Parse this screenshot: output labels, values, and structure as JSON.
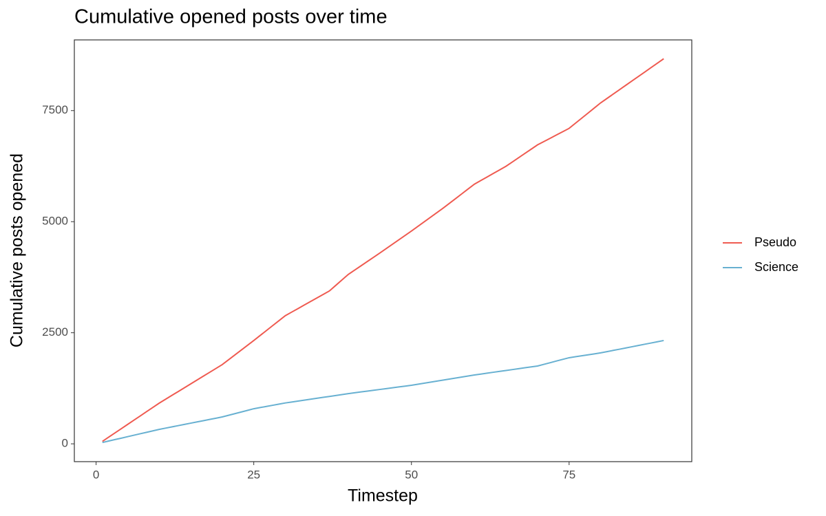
{
  "chart_data": {
    "type": "line",
    "title": "Cumulative opened posts over time",
    "x_label": "Timestep",
    "y_label": "Cumulative posts opened",
    "x": [
      1,
      2,
      3,
      4,
      5,
      6,
      7,
      8,
      9,
      10,
      11,
      12,
      13,
      14,
      15,
      16,
      17,
      18,
      19,
      20,
      21,
      22,
      23,
      24,
      25,
      26,
      27,
      28,
      29,
      30,
      31,
      32,
      33,
      34,
      35,
      36,
      37,
      38,
      39,
      40,
      41,
      42,
      43,
      44,
      45,
      46,
      47,
      48,
      49,
      50,
      51,
      52,
      53,
      54,
      55,
      56,
      57,
      58,
      59,
      60,
      61,
      62,
      63,
      64,
      65,
      66,
      67,
      68,
      69,
      70,
      71,
      72,
      73,
      74,
      75,
      76,
      77,
      78,
      79,
      80,
      81,
      82,
      83,
      84,
      85,
      86,
      87,
      88,
      89,
      90
    ],
    "series": [
      {
        "name": "Pseudo",
        "color": "#ef5a50",
        "values": [
          55,
          151,
          246,
          342,
          437,
          533,
          628,
          724,
          819,
          915,
          1002,
          1089,
          1175,
          1262,
          1349,
          1436,
          1523,
          1609,
          1696,
          1783,
          1891,
          2000,
          2108,
          2217,
          2325,
          2437,
          2549,
          2661,
          2772,
          2884,
          2964,
          3043,
          3123,
          3203,
          3283,
          3362,
          3442,
          3566,
          3690,
          3814,
          3910,
          4006,
          4103,
          4199,
          4295,
          4394,
          4493,
          4592,
          4691,
          4790,
          4892,
          4995,
          5097,
          5200,
          5302,
          5411,
          5519,
          5628,
          5737,
          5845,
          5926,
          6006,
          6087,
          6167,
          6248,
          6344,
          6440,
          6537,
          6633,
          6729,
          6803,
          6877,
          6952,
          7026,
          7100,
          7215,
          7330,
          7444,
          7559,
          7674,
          7773,
          7872,
          7972,
          8071,
          8170,
          8269,
          8369,
          8468,
          8568,
          8667
        ]
      },
      {
        "name": "Science",
        "color": "#67b0d1",
        "values": [
          30,
          63,
          96,
          128,
          161,
          194,
          227,
          259,
          292,
          325,
          353,
          381,
          409,
          437,
          465,
          493,
          521,
          549,
          577,
          605,
          642,
          679,
          716,
          753,
          790,
          816,
          842,
          868,
          894,
          920,
          941,
          962,
          983,
          1004,
          1025,
          1046,
          1067,
          1088,
          1109,
          1130,
          1149,
          1168,
          1187,
          1205,
          1224,
          1243,
          1262,
          1281,
          1299,
          1318,
          1341,
          1364,
          1388,
          1411,
          1434,
          1457,
          1480,
          1504,
          1527,
          1550,
          1570,
          1590,
          1611,
          1631,
          1651,
          1671,
          1691,
          1712,
          1732,
          1752,
          1789,
          1826,
          1864,
          1901,
          1938,
          1960,
          1982,
          2003,
          2025,
          2047,
          2075,
          2103,
          2130,
          2158,
          2186,
          2214,
          2242,
          2269,
          2297,
          2325
        ]
      }
    ],
    "xlim": [
      -3.45,
      94.45
    ],
    "xticks": [
      0,
      25,
      50,
      75
    ],
    "ylim": [
      -401,
      9091
    ],
    "yticks": [
      0,
      2500,
      5000,
      7500
    ],
    "grid": false,
    "legend": "right"
  }
}
